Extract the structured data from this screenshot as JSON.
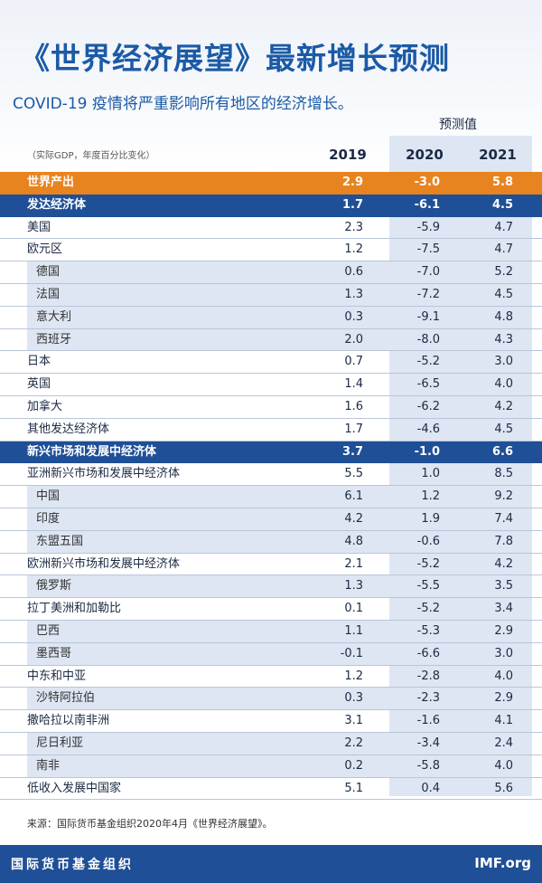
{
  "title": "《世界经济展望》最新增长预测",
  "subtitle": "COVID-19 疫情将严重影响所有地区的经济增长。",
  "forecast_label": "预测值",
  "units_note": "（实际GDP，年度百分比变化）",
  "source": "来源：国际货币基金组织2020年4月《世界经济展望》。",
  "footer": {
    "org": "国际货币基金组织",
    "site": "IMF.org"
  },
  "colors": {
    "orange": "#e8841f",
    "blue": "#1f4f96",
    "forecast_bg": "#dde6f2",
    "title": "#1b5aa6"
  },
  "chart_data": {
    "type": "table",
    "columns": [
      "2019",
      "2020",
      "2021"
    ],
    "rows": [
      {
        "name": "世界产出",
        "values": [
          "2.9",
          "-3.0",
          "5.8"
        ],
        "style": "orange"
      },
      {
        "name": "发达经济体",
        "values": [
          "1.7",
          "-6.1",
          "4.5"
        ],
        "style": "blue"
      },
      {
        "name": "美国",
        "values": [
          "2.3",
          "-5.9",
          "4.7"
        ],
        "style": "main"
      },
      {
        "name": "欧元区",
        "values": [
          "1.2",
          "-7.5",
          "4.7"
        ],
        "style": "main"
      },
      {
        "name": "德国",
        "values": [
          "0.6",
          "-7.0",
          "5.2"
        ],
        "style": "sub"
      },
      {
        "name": "法国",
        "values": [
          "1.3",
          "-7.2",
          "4.5"
        ],
        "style": "sub"
      },
      {
        "name": "意大利",
        "values": [
          "0.3",
          "-9.1",
          "4.8"
        ],
        "style": "sub"
      },
      {
        "name": "西班牙",
        "values": [
          "2.0",
          "-8.0",
          "4.3"
        ],
        "style": "sub"
      },
      {
        "name": "日本",
        "values": [
          "0.7",
          "-5.2",
          "3.0"
        ],
        "style": "main"
      },
      {
        "name": "英国",
        "values": [
          "1.4",
          "-6.5",
          "4.0"
        ],
        "style": "main"
      },
      {
        "name": "加拿大",
        "values": [
          "1.6",
          "-6.2",
          "4.2"
        ],
        "style": "main"
      },
      {
        "name": "其他发达经济体",
        "values": [
          "1.7",
          "-4.6",
          "4.5"
        ],
        "style": "main"
      },
      {
        "name": "新兴市场和发展中经济体",
        "values": [
          "3.7",
          "-1.0",
          "6.6"
        ],
        "style": "blue"
      },
      {
        "name": "亚洲新兴市场和发展中经济体",
        "values": [
          "5.5",
          "1.0",
          "8.5"
        ],
        "style": "main"
      },
      {
        "name": "中国",
        "values": [
          "6.1",
          "1.2",
          "9.2"
        ],
        "style": "sub"
      },
      {
        "name": "印度",
        "values": [
          "4.2",
          "1.9",
          "7.4"
        ],
        "style": "sub"
      },
      {
        "name": "东盟五国",
        "values": [
          "4.8",
          "-0.6",
          "7.8"
        ],
        "style": "sub"
      },
      {
        "name": "欧洲新兴市场和发展中经济体",
        "values": [
          "2.1",
          "-5.2",
          "4.2"
        ],
        "style": "main"
      },
      {
        "name": "俄罗斯",
        "values": [
          "1.3",
          "-5.5",
          "3.5"
        ],
        "style": "sub"
      },
      {
        "name": "拉丁美洲和加勒比",
        "values": [
          "0.1",
          "-5.2",
          "3.4"
        ],
        "style": "main"
      },
      {
        "name": "巴西",
        "values": [
          "1.1",
          "-5.3",
          "2.9"
        ],
        "style": "sub"
      },
      {
        "name": "墨西哥",
        "values": [
          "-0.1",
          "-6.6",
          "3.0"
        ],
        "style": "sub"
      },
      {
        "name": "中东和中亚",
        "values": [
          "1.2",
          "-2.8",
          "4.0"
        ],
        "style": "main"
      },
      {
        "name": "沙特阿拉伯",
        "values": [
          "0.3",
          "-2.3",
          "2.9"
        ],
        "style": "sub"
      },
      {
        "name": "撒哈拉以南非洲",
        "values": [
          "3.1",
          "-1.6",
          "4.1"
        ],
        "style": "main"
      },
      {
        "name": "尼日利亚",
        "values": [
          "2.2",
          "-3.4",
          "2.4"
        ],
        "style": "sub"
      },
      {
        "name": "南非",
        "values": [
          "0.2",
          "-5.8",
          "4.0"
        ],
        "style": "sub"
      },
      {
        "name": "低收入发展中国家",
        "values": [
          "5.1",
          "0.4",
          "5.6"
        ],
        "style": "main"
      }
    ]
  }
}
